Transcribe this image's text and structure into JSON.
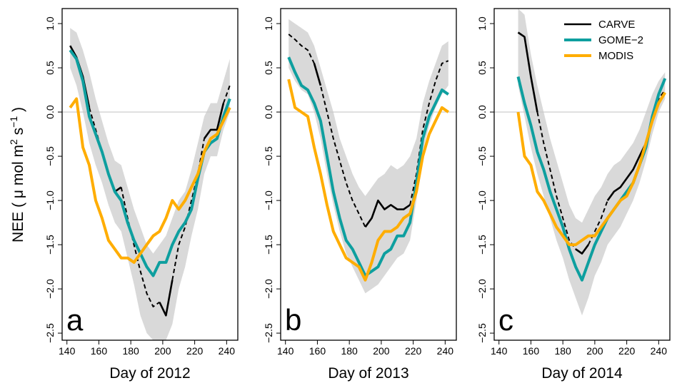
{
  "chart_data": [
    {
      "type": "line",
      "panel_label": "a",
      "x_label": "Day of 2012",
      "y_label": [
        "NEE ( μ mol m",
        "2",
        " s",
        "−1",
        " )"
      ],
      "xlim": [
        137,
        247
      ],
      "ylim": [
        -2.58,
        1.17
      ],
      "xticks": [
        140,
        160,
        180,
        200,
        220,
        240
      ],
      "yticks": [
        {
          "value": 1,
          "label": "1.0"
        },
        {
          "value": 0.5,
          "label": "0.5"
        },
        {
          "value": 0,
          "label": "0.0"
        },
        {
          "value": -0.5,
          "label": "−0.5"
        },
        {
          "value": -1,
          "label": "−1.0"
        },
        {
          "value": -1.5,
          "label": "−1.5"
        },
        {
          "value": -2,
          "label": "−2.0"
        },
        {
          "value": -2.5,
          "label": "−2.5"
        }
      ],
      "zero_line": true,
      "x": [
        142,
        146,
        150,
        154,
        158,
        162,
        166,
        170,
        174,
        178,
        182,
        186,
        190,
        194,
        198,
        202,
        206,
        210,
        214,
        218,
        222,
        226,
        230,
        234,
        238,
        242
      ],
      "band": {
        "color": "#d9d9d9",
        "upper": [
          0.95,
          0.9,
          0.7,
          0.45,
          0.15,
          -0.1,
          -0.35,
          -0.55,
          -0.6,
          -0.85,
          -1.1,
          -1.3,
          -1.5,
          -1.6,
          -1.5,
          -1.4,
          -1.2,
          -1.0,
          -0.9,
          -0.65,
          -0.35,
          -0.05,
          0.1,
          0.1,
          0.35,
          0.6
        ],
        "lower": [
          0.5,
          0.3,
          0.0,
          -0.35,
          -0.6,
          -0.8,
          -1.05,
          -1.25,
          -1.35,
          -1.65,
          -1.95,
          -2.3,
          -2.5,
          -2.58,
          -2.58,
          -2.58,
          -2.4,
          -2.0,
          -1.75,
          -1.4,
          -1.1,
          -0.7,
          -0.5,
          -0.5,
          -0.2,
          0.0
        ]
      },
      "series": [
        {
          "style": "dashed",
          "color": "#000000",
          "values": [
            null,
            null,
            null,
            0.05,
            -0.2,
            -0.45,
            -0.7,
            null,
            -0.85,
            -1.2,
            -1.5,
            -1.8,
            -2.05,
            -2.2,
            -2.15,
            null,
            -1.9,
            -1.5,
            -1.3,
            -1.0,
            -0.7,
            -0.3,
            null,
            null,
            0.1,
            0.3
          ]
        },
        {
          "name": "CARVE",
          "style": "solid",
          "color": "#000000",
          "values": [
            0.75,
            0.62,
            0.4,
            0.05,
            null,
            null,
            -0.7,
            -0.9,
            -0.85,
            null,
            null,
            null,
            null,
            null,
            -2.15,
            -2.3,
            -1.9,
            null,
            null,
            null,
            null,
            -0.3,
            -0.2,
            -0.2,
            0.1,
            null
          ]
        },
        {
          "name": "GOME−2",
          "style": "solid",
          "color": "#0e9f9f",
          "values": [
            0.7,
            0.6,
            0.35,
            -0.05,
            -0.25,
            -0.45,
            -0.7,
            -0.9,
            -1.0,
            -1.25,
            -1.45,
            -1.6,
            -1.75,
            -1.85,
            -1.7,
            -1.7,
            -1.5,
            -1.35,
            -1.25,
            -1.1,
            -0.75,
            -0.45,
            -0.35,
            -0.3,
            -0.05,
            0.15
          ]
        },
        {
          "name": "MODIS",
          "style": "solid",
          "color": "#ffad00",
          "values": [
            0.05,
            0.15,
            -0.4,
            -0.6,
            -1.0,
            -1.2,
            -1.45,
            -1.55,
            -1.65,
            -1.65,
            -1.7,
            -1.6,
            -1.5,
            -1.4,
            -1.35,
            -1.2,
            -1.0,
            -1.1,
            -1.0,
            -0.85,
            -0.7,
            -0.45,
            -0.3,
            -0.25,
            -0.1,
            0.05
          ]
        }
      ]
    },
    {
      "type": "line",
      "panel_label": "b",
      "x_label": "Day of 2013",
      "xlim": [
        137,
        247
      ],
      "ylim": [
        -2.58,
        1.17
      ],
      "xticks": [
        140,
        160,
        180,
        200,
        220,
        240
      ],
      "yticks": [
        {
          "value": 1,
          "label": "1.0"
        },
        {
          "value": 0.5,
          "label": "0.5"
        },
        {
          "value": 0,
          "label": "0.0"
        },
        {
          "value": -0.5,
          "label": "−0.5"
        },
        {
          "value": -1,
          "label": "−1.0"
        },
        {
          "value": -1.5,
          "label": "−1.5"
        },
        {
          "value": -2,
          "label": "−2.0"
        },
        {
          "value": -2.5,
          "label": "−2.5"
        }
      ],
      "zero_line": true,
      "x": [
        142,
        146,
        150,
        154,
        158,
        162,
        166,
        170,
        174,
        178,
        182,
        186,
        190,
        194,
        198,
        202,
        206,
        210,
        214,
        218,
        222,
        226,
        230,
        234,
        238,
        242
      ],
      "band": {
        "color": "#d9d9d9",
        "upper": [
          1.05,
          1.0,
          0.95,
          0.9,
          0.75,
          0.5,
          0.25,
          0.0,
          -0.3,
          -0.5,
          -0.7,
          -0.85,
          -0.95,
          -0.85,
          -0.75,
          -0.7,
          -0.6,
          -0.65,
          -0.6,
          -0.5,
          -0.3,
          0.1,
          0.35,
          0.55,
          0.75,
          0.8
        ],
        "lower": [
          0.5,
          0.35,
          0.25,
          0.2,
          0.0,
          -0.3,
          -0.7,
          -1.05,
          -1.35,
          -1.6,
          -1.75,
          -1.9,
          -2.05,
          -2.0,
          -1.95,
          -1.85,
          -1.75,
          -1.65,
          -1.6,
          -1.45,
          -1.0,
          -0.45,
          -0.15,
          0.05,
          0.2,
          0.3
        ]
      },
      "series": [
        {
          "style": "dashed",
          "color": "#000000",
          "values": [
            0.88,
            0.82,
            0.75,
            0.7,
            0.55,
            0.3,
            0.0,
            -0.3,
            -0.55,
            -0.8,
            -1.0,
            -1.15,
            -1.3,
            null,
            null,
            null,
            null,
            null,
            null,
            -1.05,
            -0.7,
            -0.2,
            0.1,
            0.35,
            0.55,
            0.58
          ]
        },
        {
          "name": "CARVE",
          "style": "solid",
          "color": "#000000",
          "values": [
            null,
            null,
            null,
            null,
            0.55,
            0.3,
            null,
            null,
            null,
            null,
            null,
            null,
            -1.3,
            -1.2,
            -1.0,
            -1.1,
            -1.05,
            -1.1,
            -1.1,
            -1.05,
            null,
            null,
            null,
            null,
            null,
            null
          ]
        },
        {
          "name": "GOME−2",
          "style": "solid",
          "color": "#0e9f9f",
          "values": [
            0.62,
            0.45,
            0.3,
            0.25,
            0.1,
            -0.1,
            -0.5,
            -0.9,
            -1.2,
            -1.45,
            -1.55,
            -1.7,
            -1.85,
            -1.8,
            -1.75,
            -1.6,
            -1.55,
            -1.4,
            -1.4,
            -1.25,
            -0.8,
            -0.3,
            -0.05,
            0.1,
            0.25,
            0.2
          ]
        },
        {
          "name": "MODIS",
          "style": "solid",
          "color": "#ffad00",
          "values": [
            0.37,
            0.05,
            0.0,
            -0.05,
            -0.4,
            -0.7,
            -1.05,
            -1.35,
            -1.5,
            -1.65,
            -1.7,
            -1.75,
            -1.9,
            -1.7,
            -1.45,
            -1.35,
            -1.35,
            -1.3,
            -1.2,
            -1.15,
            -0.9,
            -0.5,
            -0.25,
            -0.1,
            0.05,
            0.0
          ]
        }
      ]
    },
    {
      "type": "line",
      "panel_label": "c",
      "x_label": "Day of 2014",
      "legend": "top-right",
      "xlim": [
        137,
        247
      ],
      "ylim": [
        -2.58,
        1.17
      ],
      "xticks": [
        140,
        160,
        180,
        200,
        220,
        240
      ],
      "yticks": [
        {
          "value": 1,
          "label": "1.0"
        },
        {
          "value": 0.5,
          "label": "0.5"
        },
        {
          "value": 0,
          "label": "0.0"
        },
        {
          "value": -0.5,
          "label": "−0.5"
        },
        {
          "value": -1,
          "label": "−1.0"
        },
        {
          "value": -1.5,
          "label": "−1.5"
        },
        {
          "value": -2,
          "label": "−2.0"
        },
        {
          "value": -2.5,
          "label": "−2.5"
        }
      ],
      "zero_line": true,
      "x": [
        152,
        156,
        160,
        164,
        168,
        172,
        176,
        180,
        184,
        188,
        192,
        196,
        200,
        204,
        208,
        212,
        216,
        220,
        224,
        228,
        232,
        236,
        240,
        244
      ],
      "band": {
        "color": "#d9d9d9",
        "upper": [
          1.17,
          1.1,
          0.65,
          0.3,
          0.0,
          -0.3,
          -0.55,
          -0.8,
          -1.05,
          -1.2,
          -1.25,
          -1.1,
          -0.95,
          -0.85,
          -0.7,
          -0.6,
          -0.55,
          -0.45,
          -0.35,
          -0.2,
          0.0,
          0.2,
          0.35,
          0.45
        ],
        "lower": [
          0.3,
          -0.05,
          -0.4,
          -0.7,
          -0.95,
          -1.2,
          -1.45,
          -1.65,
          -1.9,
          -2.1,
          -2.3,
          -2.1,
          -1.85,
          -1.7,
          -1.5,
          -1.4,
          -1.3,
          -1.15,
          -1.0,
          -0.8,
          -0.55,
          -0.25,
          0.0,
          0.15
        ]
      },
      "series": [
        {
          "style": "dashed",
          "color": "#000000",
          "values": [
            null,
            null,
            null,
            0.0,
            -0.35,
            -0.65,
            -0.95,
            -1.2,
            -1.45,
            -1.55,
            null,
            -1.5,
            -1.35,
            -1.2,
            -1.0,
            null,
            null,
            null,
            null,
            null,
            -0.35,
            -0.1,
            0.15,
            0.25
          ]
        },
        {
          "name": "CARVE",
          "style": "solid",
          "color": "#000000",
          "values": [
            0.9,
            0.85,
            0.4,
            0.0,
            null,
            null,
            null,
            null,
            null,
            -1.55,
            -1.6,
            -1.5,
            null,
            null,
            -1.0,
            -0.9,
            -0.85,
            -0.75,
            -0.65,
            -0.5,
            -0.35,
            null,
            null,
            null
          ]
        },
        {
          "name": "GOME−2",
          "style": "solid",
          "color": "#0e9f9f",
          "values": [
            0.4,
            0.1,
            -0.15,
            -0.45,
            -0.65,
            -0.9,
            -1.1,
            -1.3,
            -1.55,
            -1.75,
            -1.9,
            -1.7,
            -1.5,
            -1.35,
            -1.2,
            -1.1,
            -1.0,
            -0.9,
            -0.8,
            -0.6,
            -0.4,
            -0.05,
            0.2,
            0.38
          ]
        },
        {
          "name": "MODIS",
          "style": "solid",
          "color": "#ffad00",
          "values": [
            0.0,
            -0.5,
            -0.6,
            -0.9,
            -1.0,
            -1.15,
            -1.3,
            -1.4,
            -1.5,
            -1.5,
            -1.45,
            -1.4,
            -1.4,
            -1.3,
            -1.2,
            -1.1,
            -1.0,
            -0.95,
            -0.8,
            -0.6,
            -0.35,
            -0.1,
            0.1,
            0.22
          ]
        }
      ]
    }
  ]
}
